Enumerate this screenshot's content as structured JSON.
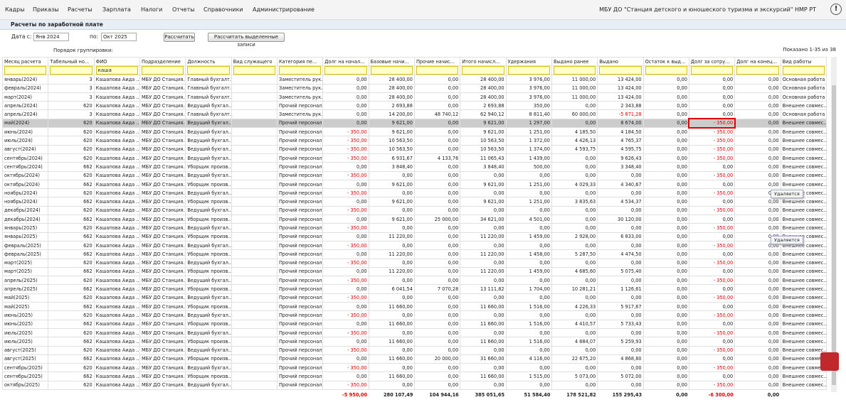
{
  "menu": [
    "Кадры",
    "Приказы",
    "Расчеты",
    "Зарплата",
    "Налоги",
    "Отчеты",
    "Справочники",
    "Администрирование"
  ],
  "organization": "МБУ ДО \"Станция детского и юношеского туризма и экскурсий\" НМР РТ",
  "window_title": "Расчеты по заработной плате",
  "toolbar": {
    "date_from_label": "Дата с:",
    "date_from": "Янв 2024",
    "date_to_label": "по:",
    "date_to": "Окт 2025",
    "calc_button": "Рассчитать",
    "calc_selected_button": "Рассчитать выделенные записи"
  },
  "grid_toolbar": {
    "grouping_label": "Порядок группировки:",
    "shown": "Показано 1-35 из 38"
  },
  "table": {
    "columns": [
      "Месяц расчета",
      "Табельный но...",
      "ФИО",
      "Подразделение",
      "Должность",
      "Вид служащего",
      "Категория пе...",
      "Долг на начал...",
      "Базовые начи...",
      "Прочие начис...",
      "Итого начисл...",
      "Удержания",
      "Выдано ранее",
      "Выдано",
      "Остаток к выд...",
      "Долг за сотру...",
      "Долг на конец...",
      "Вид работы"
    ],
    "filter_value": "каша",
    "rows": [
      [
        "январь(2024)",
        "3",
        "Кашапова Аида ...",
        "МБУ ДО Станция...",
        "Главный бухгалт...",
        "",
        "Заместитель рук...",
        "0,00",
        "28 400,00",
        "0,00",
        "28 400,00",
        "3 976,00",
        "11 000,00",
        "13 424,00",
        "0,00",
        "0,00",
        "0,00",
        "Основная работа"
      ],
      [
        "февраль(2024)",
        "3",
        "Кашапова Аида ...",
        "МБУ ДО Станция...",
        "Главный бухгалт...",
        "",
        "Заместитель рук...",
        "0,00",
        "28 400,00",
        "0,00",
        "28 400,00",
        "3 976,00",
        "11 000,00",
        "13 424,00",
        "0,00",
        "0,00",
        "0,00",
        "Основная работа"
      ],
      [
        "март(2024)",
        "3",
        "Кашапова Аида ...",
        "МБУ ДО Станция...",
        "Главный бухгалт...",
        "",
        "Заместитель рук...",
        "0,00",
        "28 400,00",
        "0,00",
        "28 400,00",
        "3 976,00",
        "11 000,00",
        "13 424,00",
        "0,00",
        "0,00",
        "0,00",
        "Основная работа"
      ],
      [
        "апрель(2024)",
        "620",
        "Кашапова Аида ...",
        "МБУ ДО Станция...",
        "Ведущий бухгал...",
        "",
        "Прочий персонал",
        "0,00",
        "2 693,88",
        "0,00",
        "2 693,88",
        "350,00",
        "0,00",
        "2 343,88",
        "0,00",
        "0,00",
        "0,00",
        "Внешнее совмес..."
      ],
      [
        "апрель(2024)",
        "3",
        "Кашапова Аида ...",
        "МБУ ДО Станция...",
        "Главный бухгалт...",
        "",
        "Заместитель рук...",
        "0,00",
        "14 200,00",
        "48 740,12",
        "62 940,12",
        "8 811,40",
        "60 000,00",
        "-5 871,28",
        "0,00",
        "0,00",
        "0,00",
        "Основная работа"
      ],
      [
        "май(2024)",
        "620",
        "Кашапова Аида ...",
        "МБУ ДО Станция...",
        "Ведущий бухгал...",
        "",
        "Прочий персонал",
        "0,00",
        "9 621,00",
        "0,00",
        "9 621,00",
        "1 297,00",
        "0,00",
        "8 674,00",
        "0,00",
        "- 350,00",
        "0,00",
        "Внешнее совмес..."
      ],
      [
        "июнь(2024)",
        "620",
        "Кашапова Аида ...",
        "МБУ ДО Станция...",
        "Ведущий бухгал...",
        "",
        "Прочий персонал",
        "- 350,00",
        "9 621,00",
        "0,00",
        "9 621,00",
        "1 251,00",
        "4 185,50",
        "4 184,50",
        "0,00",
        "- 350,00",
        "0,00",
        "Внешнее совмес..."
      ],
      [
        "июль(2024)",
        "620",
        "Кашапова Аида ...",
        "МБУ ДО Станция...",
        "Ведущий бухгал...",
        "",
        "Прочий персонал",
        "- 350,00",
        "10 563,50",
        "0,00",
        "10 563,50",
        "1 372,00",
        "4 426,13",
        "4 765,37",
        "0,00",
        "- 350,00",
        "0,00",
        "Внешнее совмес..."
      ],
      [
        "август(2024)",
        "620",
        "Кашапова Аида ...",
        "МБУ ДО Станция...",
        "Ведущий бухгал...",
        "",
        "Прочий персонал",
        "- 350,00",
        "10 563,50",
        "0,00",
        "10 563,50",
        "1 374,00",
        "4 593,75",
        "4 595,75",
        "0,00",
        "- 350,00",
        "0,00",
        "Внешнее совмес..."
      ],
      [
        "сентябрь(2024)",
        "620",
        "Кашапова Аида ...",
        "МБУ ДО Станция...",
        "Ведущий бухгал...",
        "",
        "Прочий персонал",
        "- 350,00",
        "6 931,67",
        "4 133,76",
        "11 065,43",
        "1 439,00",
        "0,00",
        "9 626,43",
        "0,00",
        "- 350,00",
        "0,00",
        "Внешнее совмес..."
      ],
      [
        "сентябрь(2024)",
        "662",
        "Кашапова Аида ...",
        "МБУ ДО Станция...",
        "Уборщик произв...",
        "",
        "Прочий персонал",
        "0,00",
        "3 848,40",
        "0,00",
        "3 848,40",
        "500,00",
        "0,00",
        "3 348,40",
        "0,00",
        "0,00",
        "0,00",
        "Внешнее совмес..."
      ],
      [
        "октябрь(2024)",
        "620",
        "Кашапова Аида ...",
        "МБУ ДО Станция...",
        "Ведущий бухгал...",
        "",
        "Прочий персонал",
        "- 350,00",
        "0,00",
        "0,00",
        "0,00",
        "0,00",
        "0,00",
        "0,00",
        "0,00",
        "- 350,00",
        "0,00",
        "Внешнее совмес..."
      ],
      [
        "октябрь(2024)",
        "662",
        "Кашапова Аида ...",
        "МБУ ДО Станция...",
        "Уборщик произв...",
        "",
        "Прочий персонал",
        "0,00",
        "9 621,00",
        "0,00",
        "9 621,00",
        "1 251,00",
        "4 029,33",
        "4 340,67",
        "0,00",
        "0,00",
        "0,00",
        "Внешнее совмес..."
      ],
      [
        "ноябрь(2024)",
        "620",
        "Кашапова Аида ...",
        "МБУ ДО Станция...",
        "Ведущий бухгал...",
        "",
        "Прочий персонал",
        "- 350,00",
        "0,00",
        "0,00",
        "0,00",
        "0,00",
        "0,00",
        "0,00",
        "0,00",
        "- 350,00",
        "0,00",
        "Внешнее совмес..."
      ],
      [
        "ноябрь(2024)",
        "662",
        "Кашапова Аида ...",
        "МБУ ДО Станция...",
        "Уборщик произв...",
        "",
        "Прочий персонал",
        "0,00",
        "9 621,00",
        "0,00",
        "9 621,00",
        "1 251,00",
        "3 835,63",
        "4 534,37",
        "0,00",
        "0,00",
        "0,00",
        "Внешнее совмес..."
      ],
      [
        "декабрь(2024)",
        "620",
        "Кашапова Аида ...",
        "МБУ ДО Станция...",
        "Ведущий бухгал...",
        "",
        "Прочий персонал",
        "- 350,00",
        "0,00",
        "0,00",
        "0,00",
        "0,00",
        "0,00",
        "0,00",
        "0,00",
        "- 350,00",
        "0,00",
        "Внешнее совмес..."
      ],
      [
        "декабрь(2024)",
        "662",
        "Кашапова Аида ...",
        "МБУ ДО Станция...",
        "Уборщик произв...",
        "",
        "Прочий персонал",
        "0,00",
        "9 621,00",
        "25 000,00",
        "34 621,00",
        "4 501,00",
        "0,00",
        "30 120,00",
        "0,00",
        "0,00",
        "0,00",
        "Внешнее совмес..."
      ],
      [
        "январь(2025)",
        "620",
        "Кашапова Аида ...",
        "МБУ ДО Станция...",
        "Ведущий бухгал...",
        "",
        "Прочий персонал",
        "- 350,00",
        "0,00",
        "0,00",
        "0,00",
        "0,00",
        "0,00",
        "0,00",
        "0,00",
        "- 350,00",
        "0,00",
        "Внешнее совмес..."
      ],
      [
        "январь(2025)",
        "662",
        "Кашапова Аида ...",
        "МБУ ДО Станция...",
        "Уборщик произв...",
        "",
        "Прочий персонал",
        "0,00",
        "11 220,00",
        "0,00",
        "11 220,00",
        "1 459,00",
        "2 928,00",
        "6 833,00",
        "0,00",
        "0,00",
        "0,00",
        "Внешнее совмес..."
      ],
      [
        "февраль(2025)",
        "620",
        "Кашапова Аида ...",
        "МБУ ДО Станция...",
        "Ведущий бухгал...",
        "",
        "Прочий персонал",
        "- 350,00",
        "0,00",
        "0,00",
        "0,00",
        "0,00",
        "0,00",
        "0,00",
        "0,00",
        "- 350,00",
        "0,00",
        "Внешнее совмес..."
      ],
      [
        "февраль(2025)",
        "662",
        "Кашапова Аида ...",
        "МБУ ДО Станция...",
        "Уборщик произв...",
        "",
        "Прочий персонал",
        "0,00",
        "11 220,00",
        "0,00",
        "11 220,00",
        "1 458,00",
        "5 287,50",
        "4 474,50",
        "0,00",
        "0,00",
        "0,00",
        "Внешнее совмес..."
      ],
      [
        "март(2025)",
        "620",
        "Кашапова Аида ...",
        "МБУ ДО Станция...",
        "Ведущий бухгал...",
        "",
        "Прочий персонал",
        "- 350,00",
        "0,00",
        "0,00",
        "0,00",
        "0,00",
        "0,00",
        "0,00",
        "0,00",
        "- 350,00",
        "0,00",
        "Внешнее совмес..."
      ],
      [
        "март(2025)",
        "662",
        "Кашапова Аида ...",
        "МБУ ДО Станция...",
        "Уборщик произв...",
        "",
        "Прочий персонал",
        "0,00",
        "11 220,00",
        "0,00",
        "11 220,00",
        "1 459,00",
        "4 685,60",
        "5 075,40",
        "0,00",
        "0,00",
        "0,00",
        "Внешнее совмес..."
      ],
      [
        "апрель(2025)",
        "620",
        "Кашапова Аида ...",
        "МБУ ДО Станция...",
        "Ведущий бухгал...",
        "",
        "Прочий персонал",
        "- 350,00",
        "0,00",
        "0,00",
        "0,00",
        "0,00",
        "0,00",
        "0,00",
        "0,00",
        "- 350,00",
        "0,00",
        "Внешнее совмес..."
      ],
      [
        "апрель(2025)",
        "662",
        "Кашапова Аида ...",
        "МБУ ДО Станция...",
        "Уборщик произв...",
        "",
        "Прочий персонал",
        "0,00",
        "6 041,54",
        "7 070,28",
        "13 111,82",
        "1 704,00",
        "10 281,21",
        "1 126,61",
        "0,00",
        "0,00",
        "0,00",
        "Внешнее совмес..."
      ],
      [
        "май(2025)",
        "620",
        "Кашапова Аида ...",
        "МБУ ДО Станция...",
        "Ведущий бухгал...",
        "",
        "Прочий персонал",
        "- 350,00",
        "0,00",
        "0,00",
        "0,00",
        "0,00",
        "0,00",
        "0,00",
        "0,00",
        "- 350,00",
        "0,00",
        "Внешнее совмес..."
      ],
      [
        "май(2025)",
        "662",
        "Кашапова Аида ...",
        "МБУ ДО Станция...",
        "Уборщик произв...",
        "",
        "Прочий персонал",
        "0,00",
        "11 660,00",
        "0,00",
        "11 660,00",
        "1 516,00",
        "4 226,33",
        "5 917,67",
        "0,00",
        "0,00",
        "0,00",
        "Внешнее совмес..."
      ],
      [
        "июнь(2025)",
        "620",
        "Кашапова Аида ...",
        "МБУ ДО Станция...",
        "Ведущий бухгал...",
        "",
        "Прочий персонал",
        "- 350,00",
        "0,00",
        "0,00",
        "0,00",
        "0,00",
        "0,00",
        "0,00",
        "0,00",
        "- 350,00",
        "0,00",
        "Внешнее совмес..."
      ],
      [
        "июнь(2025)",
        "662",
        "Кашапова Аида ...",
        "МБУ ДО Станция...",
        "Уборщик произв...",
        "",
        "Прочий персонал",
        "0,00",
        "11 660,00",
        "0,00",
        "11 660,00",
        "1 516,00",
        "4 410,57",
        "5 733,43",
        "0,00",
        "0,00",
        "0,00",
        "Внешнее совмес..."
      ],
      [
        "июль(2025)",
        "620",
        "Кашапова Аида ...",
        "МБУ ДО Станция...",
        "Ведущий бухгал...",
        "",
        "Прочий персонал",
        "- 350,00",
        "0,00",
        "0,00",
        "0,00",
        "0,00",
        "0,00",
        "0,00",
        "0,00",
        "- 350,00",
        "0,00",
        "Внешнее совмес..."
      ],
      [
        "июль(2025)",
        "662",
        "Кашапова Аида ...",
        "МБУ ДО Станция...",
        "Уборщик произв...",
        "",
        "Прочий персонал",
        "0,00",
        "11 660,00",
        "0,00",
        "11 660,00",
        "1 516,00",
        "4 884,07",
        "5 259,93",
        "0,00",
        "0,00",
        "0,00",
        "Внешнее совмес..."
      ],
      [
        "август(2025)",
        "620",
        "Кашапова Аида ...",
        "МБУ ДО Станция...",
        "Ведущий бухгал...",
        "",
        "Прочий персонал",
        "- 350,00",
        "0,00",
        "0,00",
        "0,00",
        "0,00",
        "0,00",
        "0,00",
        "0,00",
        "- 350,00",
        "0,00",
        "Внешнее совмес..."
      ],
      [
        "август(2025)",
        "662",
        "Кашапова Аида ...",
        "МБУ ДО Станция...",
        "Уборщик произв...",
        "",
        "Прочий персонал",
        "0,00",
        "11 660,00",
        "20 000,00",
        "31 660,00",
        "4 116,00",
        "22 675,20",
        "4 868,80",
        "0,00",
        "0,00",
        "0,00",
        "Внешнее совмес..."
      ],
      [
        "сентябрь(2025)",
        "620",
        "Кашапова Аида ...",
        "МБУ ДО Станция...",
        "Ведущий бухгал...",
        "",
        "Прочий персонал",
        "- 350,00",
        "0,00",
        "0,00",
        "0,00",
        "0,00",
        "0,00",
        "0,00",
        "0,00",
        "- 350,00",
        "0,00",
        "Внешнее совмес..."
      ],
      [
        "сентябрь(2025)",
        "662",
        "Кашапова Аида ...",
        "МБУ ДО Станция...",
        "Уборщик произв...",
        "",
        "Прочий персонал",
        "0,00",
        "11 660,00",
        "0,00",
        "11 660,00",
        "1 515,00",
        "5 073,00",
        "5 072,00",
        "0,00",
        "0,00",
        "0,00",
        "Внешнее совмес..."
      ],
      [
        "октябрь(2025)",
        "620",
        "Кашапова Аида ...",
        "МБУ ДО Станция...",
        "Ведущий бухгал...",
        "",
        "Прочий персонал",
        "- 350,00",
        "0,00",
        "0,00",
        "0,00",
        "0,00",
        "0,00",
        "0,00",
        "0,00",
        "- 350,00",
        "0,00",
        "Внешнее совмес..."
      ]
    ],
    "totals": [
      "",
      "",
      "",
      "",
      "",
      "",
      "",
      "-5 950,00",
      "280 107,49",
      "104 944,16",
      "385 051,65",
      "51 584,40",
      "178 521,82",
      "155 295,43",
      "0,00",
      "-6 300,00",
      "0,00",
      ""
    ]
  },
  "tooltips": [
    "Удаляется",
    "Удаляется"
  ]
}
